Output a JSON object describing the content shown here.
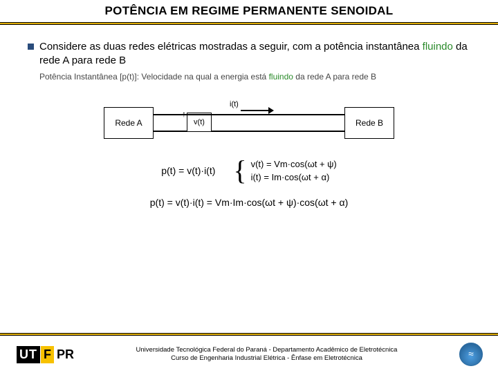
{
  "header": {
    "title": "POTÊNCIA EM REGIME PERMANENTE SENOIDAL",
    "underline_color": "#f7c100"
  },
  "body": {
    "paragraph1_a": "Considere as duas redes elétricas mostradas a seguir, com a potência instantânea ",
    "paragraph1_green": "fluindo",
    "paragraph1_b": " da rede A para rede B",
    "paragraph2_a": "Potência Instantânea [p(t)]: Velocidade na qual a energia está ",
    "paragraph2_green": "fluindo",
    "paragraph2_b": " da rede A para rede B"
  },
  "diagram": {
    "boxA": "Rede A",
    "boxB": "Rede B",
    "i_label": "i(t)",
    "v_label": "v(t)"
  },
  "equations": {
    "eq1": "p(t) = v(t)·i(t)",
    "eq2a": "v(t) = Vm·cos(ωt + ψ)",
    "eq2b": "i(t) = Im·cos(ωt + α)",
    "eq3": "p(t) = v(t)·i(t) = Vm·Im·cos(ωt + ψ)·cos(ωt + α)"
  },
  "footer": {
    "logo_ut": "UT",
    "logo_f": "F",
    "logo_pr": "PR",
    "line1": "Universidade Tecnológica Federal do Paraná  -  Departamento Acadêmico de Eletrotécnica",
    "line2": "Curso de Engenharia Industrial Elétrica  -  Ênfase em Eletrotécnica"
  }
}
